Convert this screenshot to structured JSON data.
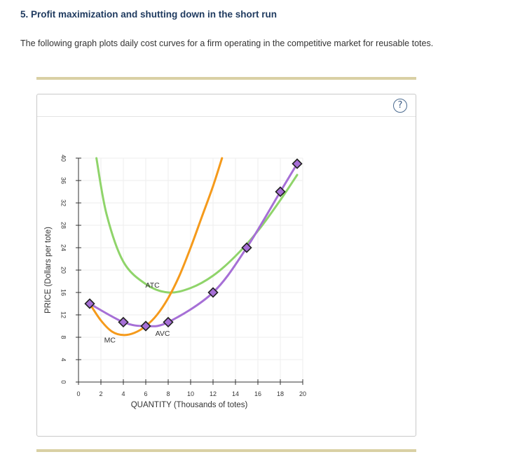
{
  "question": {
    "title": "5. Profit maximization and shutting down in the short run",
    "intro": "The following graph plots daily cost curves for a firm operating in the competitive market for reusable totes."
  },
  "help": {
    "symbol": "?"
  },
  "colors": {
    "atc": "#8fd46a",
    "avc": "#a66fd6",
    "mc": "#f59a1b",
    "marker_fill": "#a66fd6",
    "marker_stroke": "#222222"
  },
  "chart_data": {
    "type": "line",
    "xlabel": "QUANTITY (Thousands of totes)",
    "ylabel": "PRICE (Dollars per tote)",
    "xlim": [
      0,
      20
    ],
    "ylim": [
      0,
      40
    ],
    "x_ticks": [
      0,
      2,
      4,
      6,
      8,
      10,
      12,
      14,
      16,
      18,
      20
    ],
    "y_ticks": [
      0,
      4,
      8,
      12,
      16,
      20,
      24,
      28,
      32,
      36,
      40
    ],
    "grid": true,
    "series": [
      {
        "name": "ATC",
        "color": "#8fd46a",
        "points": [
          [
            1.6,
            40
          ],
          [
            2.5,
            30
          ],
          [
            4,
            21.5
          ],
          [
            6,
            17.5
          ],
          [
            8,
            16
          ],
          [
            10,
            16.8
          ],
          [
            12,
            19
          ],
          [
            14,
            22.5
          ],
          [
            16,
            27
          ],
          [
            18,
            32.5
          ],
          [
            19.5,
            37
          ]
        ]
      },
      {
        "name": "AVC",
        "color": "#a66fd6",
        "markers": true,
        "points": [
          [
            1,
            14
          ],
          [
            4,
            10.7
          ],
          [
            6,
            10
          ],
          [
            8,
            10.7
          ],
          [
            12,
            16
          ],
          [
            15,
            24
          ],
          [
            18,
            34
          ],
          [
            19.5,
            39
          ]
        ]
      },
      {
        "name": "MC",
        "color": "#f59a1b",
        "points": [
          [
            1,
            14
          ],
          [
            2,
            11
          ],
          [
            3,
            9
          ],
          [
            4,
            8.4
          ],
          [
            5,
            8.8
          ],
          [
            6,
            10
          ],
          [
            7,
            12
          ],
          [
            8,
            15
          ],
          [
            9,
            19
          ],
          [
            10,
            24
          ],
          [
            11,
            29.5
          ],
          [
            12,
            35
          ],
          [
            12.8,
            40
          ]
        ]
      }
    ],
    "curve_labels": [
      {
        "text": "ATC",
        "x": 6.6,
        "y": 17.2
      },
      {
        "text": "AVC",
        "x": 7.5,
        "y": 8.6
      },
      {
        "text": "MC",
        "x": 2.8,
        "y": 7.4
      }
    ]
  }
}
